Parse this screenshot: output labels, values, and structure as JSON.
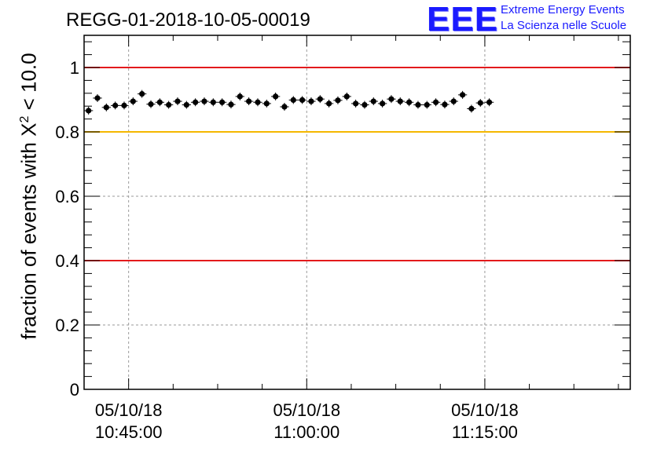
{
  "header": {
    "title": "REGG-01-2018-10-05-00019",
    "logo_mark": "EEE",
    "logo_line1": "Extreme Energy Events",
    "logo_line2": "La Scienza nelle Scuole"
  },
  "colors": {
    "threshold_red": "#e31a1c",
    "threshold_yellow": "#f5b800",
    "logo_blue": "#1a1aff",
    "points": "#000000"
  },
  "chart_data": {
    "type": "scatter",
    "ylabel_main": "fraction of events with ",
    "ylabel_symbol": "X",
    "ylabel_sup": "2",
    "ylabel_tail": " < 10.0",
    "xlabel": "",
    "ylim": [
      0,
      1.1
    ],
    "xlim_minutes": [
      -7.5,
      84.5
    ],
    "grid": true,
    "x_ticks": [
      {
        "minute": 0,
        "date": "05/10/18",
        "time": "10:45:00"
      },
      {
        "minute": 30,
        "date": "05/10/18",
        "time": "11:00:00"
      },
      {
        "minute": 60,
        "date": "05/10/18",
        "time": "11:15:00"
      }
    ],
    "y_ticks": [
      {
        "value": 0,
        "label": "0"
      },
      {
        "value": 0.2,
        "label": "0.2"
      },
      {
        "value": 0.4,
        "label": "0.4"
      },
      {
        "value": 0.6,
        "label": "0.6"
      },
      {
        "value": 0.8,
        "label": "0.8"
      },
      {
        "value": 1,
        "label": "1"
      }
    ],
    "reference_lines": [
      {
        "y": 1.0,
        "color": "#e31a1c"
      },
      {
        "y": 0.8,
        "color": "#f5b800"
      },
      {
        "y": 0.4,
        "color": "#e31a1c"
      }
    ],
    "x_start_minute": -6.75,
    "x_step_minute": 1.5,
    "values": [
      0.866,
      0.905,
      0.876,
      0.882,
      0.882,
      0.895,
      0.918,
      0.886,
      0.892,
      0.884,
      0.895,
      0.884,
      0.892,
      0.895,
      0.892,
      0.892,
      0.885,
      0.91,
      0.895,
      0.892,
      0.888,
      0.91,
      0.878,
      0.899,
      0.899,
      0.895,
      0.902,
      0.888,
      0.898,
      0.91,
      0.888,
      0.884,
      0.895,
      0.888,
      0.902,
      0.895,
      0.892,
      0.884,
      0.884,
      0.892,
      0.885,
      0.895,
      0.915,
      0.872,
      0.89,
      0.892
    ]
  }
}
